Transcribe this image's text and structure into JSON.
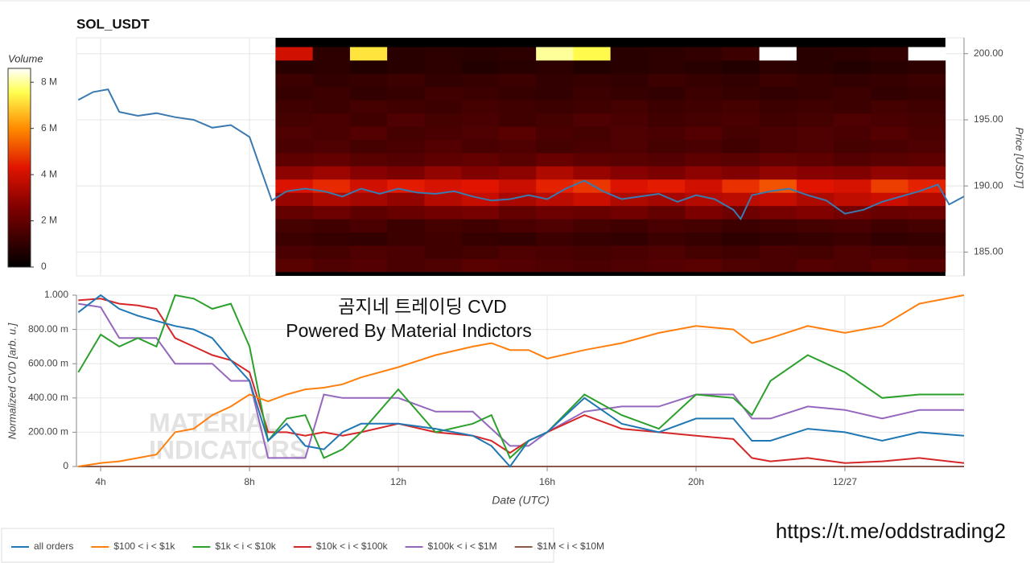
{
  "chart_data": [
    {
      "type": "heatmap",
      "title": "SOL_USDT",
      "ylabel": "Price [USDT]",
      "xlim": [
        3.35,
        27.2
      ],
      "xticks": [
        4,
        8,
        12,
        16,
        20,
        24
      ],
      "ylim": [
        183.2,
        201.2
      ],
      "yticks": [
        {
          "value": 185,
          "label": "185.00"
        },
        {
          "value": 190,
          "label": "190.00"
        },
        {
          "value": 195,
          "label": "195.00"
        },
        {
          "value": 200,
          "label": "200.00"
        }
      ],
      "grid": true,
      "colorbar": {
        "title": "Volume",
        "clim": [
          0,
          8.6
        ],
        "ticks": [
          0,
          {
            "value": 2,
            "label": "2 M"
          },
          {
            "value": 4,
            "label": "4 M"
          },
          {
            "value": 6,
            "label": "6 M"
          },
          {
            "value": 8,
            "label": "8 M"
          }
        ]
      },
      "heatmap": {
        "x_edges": [
          8.7,
          9.7,
          10.7,
          11.7,
          12.7,
          13.7,
          14.7,
          15.7,
          16.7,
          17.7,
          18.7,
          19.7,
          20.7,
          21.7,
          22.7,
          23.7,
          24.7,
          25.7,
          26.7
        ],
        "y_edges": [
          183.5,
          184.5,
          185.5,
          186.5,
          187.5,
          188.5,
          189.5,
          190.5,
          191.5,
          192.5,
          193.5,
          194.5,
          195.5,
          196.5,
          197.5,
          198.5,
          199.5,
          200.5
        ],
        "values": [
          [
            1.8,
            1.6,
            1.7,
            1.5,
            1.6,
            1.8,
            1.7,
            1.6,
            1.5,
            1.6,
            1.7,
            1.8,
            1.6,
            1.5,
            1.7,
            1.6,
            1.8,
            1.7
          ],
          [
            1.5,
            1.4,
            1.6,
            1.5,
            1.3,
            1.4,
            1.6,
            1.5,
            1.4,
            1.5,
            1.6,
            1.4,
            1.3,
            1.5,
            1.4,
            1.6,
            1.5,
            1.4
          ],
          [
            1.2,
            1.1,
            1.0,
            1.2,
            1.3,
            1.1,
            1.0,
            1.2,
            1.1,
            1.0,
            1.2,
            1.1,
            0.9,
            1.0,
            1.1,
            1.2,
            1.0,
            1.1
          ],
          [
            1.4,
            1.3,
            1.5,
            1.2,
            1.4,
            1.3,
            1.5,
            1.6,
            1.4,
            1.3,
            1.5,
            1.4,
            1.2,
            1.3,
            1.4,
            1.5,
            1.3,
            1.4
          ],
          [
            2.0,
            2.2,
            1.9,
            2.1,
            2.3,
            2.4,
            2.0,
            2.2,
            2.1,
            2.3,
            2.0,
            2.5,
            2.2,
            2.4,
            2.6,
            2.3,
            2.1,
            2.2
          ],
          [
            3.0,
            3.4,
            3.2,
            2.9,
            3.5,
            3.8,
            3.3,
            3.6,
            3.9,
            3.4,
            3.2,
            3.5,
            3.6,
            3.8,
            3.4,
            3.7,
            3.9,
            3.5
          ],
          [
            4.2,
            4.6,
            4.0,
            4.4,
            4.1,
            4.3,
            3.9,
            4.5,
            4.8,
            4.2,
            4.4,
            4.0,
            4.7,
            5.2,
            4.3,
            4.1,
            4.9,
            4.5
          ],
          [
            2.8,
            3.1,
            2.7,
            2.5,
            2.9,
            2.6,
            2.8,
            3.4,
            3.0,
            2.7,
            2.5,
            2.8,
            2.6,
            2.9,
            2.7,
            2.6,
            2.9,
            2.8
          ],
          [
            1.9,
            2.0,
            1.8,
            1.7,
            1.9,
            2.0,
            1.8,
            2.1,
            1.9,
            1.8,
            1.7,
            1.9,
            1.8,
            2.0,
            1.9,
            1.7,
            1.8,
            1.9
          ],
          [
            1.5,
            1.6,
            1.4,
            1.5,
            1.7,
            1.5,
            1.6,
            1.4,
            1.5,
            1.6,
            1.4,
            1.5,
            1.3,
            1.5,
            1.6,
            1.4,
            1.5,
            1.6
          ],
          [
            1.6,
            1.5,
            1.7,
            1.4,
            1.5,
            1.6,
            1.8,
            1.5,
            1.4,
            1.6,
            1.5,
            1.7,
            1.4,
            1.5,
            1.6,
            1.5,
            1.7,
            1.5
          ],
          [
            1.4,
            1.5,
            1.3,
            1.6,
            1.4,
            1.5,
            1.3,
            1.4,
            1.6,
            1.5,
            1.3,
            1.4,
            1.5,
            1.3,
            1.4,
            1.6,
            1.5,
            1.4
          ],
          [
            1.3,
            1.2,
            1.4,
            1.3,
            1.2,
            1.4,
            1.3,
            1.2,
            1.3,
            1.4,
            1.2,
            1.3,
            1.4,
            1.2,
            1.3,
            1.2,
            1.4,
            1.3
          ],
          [
            1.1,
            1.2,
            1.0,
            1.1,
            1.3,
            1.2,
            1.1,
            1.0,
            1.2,
            1.1,
            1.0,
            1.2,
            1.1,
            1.0,
            1.1,
            1.2,
            1.0,
            1.1
          ],
          [
            1.2,
            1.0,
            1.1,
            1.2,
            1.0,
            1.1,
            1.2,
            1.0,
            1.1,
            1.0,
            1.2,
            1.1,
            1.0,
            1.2,
            1.1,
            1.0,
            1.1,
            1.2
          ],
          [
            0.8,
            0.9,
            0.7,
            0.8,
            0.9,
            0.7,
            0.8,
            0.9,
            0.7,
            0.8,
            0.9,
            0.8,
            0.7,
            0.9,
            0.8,
            0.7,
            0.8,
            0.9
          ],
          [
            4.0,
            0.9,
            7.2,
            0.8,
            0.9,
            0.8,
            0.9,
            8.0,
            7.5,
            0.8,
            0.9,
            1.0,
            1.2,
            8.9,
            0.8,
            0.9,
            1.0,
            8.8
          ]
        ]
      },
      "price": {
        "color": "#3a7ab0",
        "x": [
          3.4,
          3.8,
          4.2,
          4.5,
          5.0,
          5.5,
          6.0,
          6.5,
          7.0,
          7.5,
          8.0,
          8.3,
          8.6,
          9.0,
          9.5,
          10,
          10.5,
          11,
          11.5,
          12,
          12.5,
          13,
          13.5,
          14,
          14.5,
          15,
          15.5,
          16,
          16.5,
          17,
          17.5,
          18,
          18.5,
          19,
          19.5,
          20,
          20.5,
          21,
          21.2,
          21.5,
          22,
          22.5,
          23,
          23.5,
          24,
          24.5,
          25,
          25.5,
          26,
          26.5,
          26.8,
          27.2
        ],
        "values": [
          196.5,
          197.1,
          197.3,
          195.6,
          195.3,
          195.5,
          195.2,
          195.0,
          194.4,
          194.6,
          193.7,
          191.3,
          188.9,
          189.6,
          189.8,
          189.6,
          189.2,
          189.8,
          189.4,
          189.8,
          189.5,
          189.4,
          189.6,
          189.2,
          188.9,
          189.0,
          189.3,
          189.0,
          189.8,
          190.4,
          189.6,
          189.0,
          189.2,
          189.4,
          188.8,
          189.3,
          189.0,
          188.2,
          187.5,
          189.3,
          189.6,
          189.8,
          189.3,
          188.9,
          187.9,
          188.2,
          188.8,
          189.2,
          189.6,
          190.1,
          188.6,
          189.2
        ]
      }
    },
    {
      "type": "line",
      "xlabel": "Date (UTC)",
      "ylabel": "Normalized CVD [arb. u.]",
      "annotations": [
        "곰지네 트레이딩 CVD",
        "Powered By Material Indictors"
      ],
      "watermark": [
        "MATERIAL",
        "INDICATORS"
      ],
      "xlim": [
        3.35,
        27.2
      ],
      "xticks": [
        {
          "value": 4,
          "label": "4h"
        },
        {
          "value": 8,
          "label": "8h"
        },
        {
          "value": 12,
          "label": "12h"
        },
        {
          "value": 16,
          "label": "16h"
        },
        {
          "value": 20,
          "label": "20h"
        },
        {
          "value": 24,
          "label": "12/27"
        }
      ],
      "ylim": [
        0,
        1
      ],
      "yticks": [
        0,
        {
          "value": 0.2,
          "label": "200.00 m"
        },
        {
          "value": 0.4,
          "label": "400.00 m"
        },
        {
          "value": 0.6,
          "label": "600.00 m"
        },
        {
          "value": 0.8,
          "label": "800.00 m"
        },
        {
          "value": 1,
          "label": "1.000"
        }
      ],
      "grid": true,
      "legend": "bottom-left",
      "x": [
        3.4,
        4,
        4.5,
        5,
        5.5,
        6,
        6.5,
        7,
        7.5,
        8,
        8.5,
        9,
        9.5,
        10,
        10.5,
        11,
        12,
        13,
        14,
        14.5,
        15,
        15.5,
        16,
        17,
        18,
        19,
        20,
        21,
        21.5,
        22,
        23,
        24,
        25,
        26,
        27.2
      ],
      "series": [
        {
          "name": "all orders",
          "color": "#1f77b4",
          "values": [
            0.9,
            1.0,
            0.92,
            0.88,
            0.85,
            0.82,
            0.8,
            0.75,
            0.62,
            0.5,
            0.15,
            0.25,
            0.12,
            0.1,
            0.2,
            0.25,
            0.25,
            0.22,
            0.18,
            0.12,
            0.0,
            0.15,
            0.2,
            0.4,
            0.25,
            0.2,
            0.28,
            0.28,
            0.15,
            0.15,
            0.22,
            0.2,
            0.15,
            0.2,
            0.18
          ]
        },
        {
          "name": "$100 < i < $1k",
          "color": "#ff7f0e",
          "values": [
            0.0,
            0.02,
            0.03,
            0.05,
            0.07,
            0.2,
            0.22,
            0.3,
            0.35,
            0.42,
            0.38,
            0.42,
            0.45,
            0.46,
            0.48,
            0.52,
            0.58,
            0.65,
            0.7,
            0.72,
            0.68,
            0.68,
            0.63,
            0.68,
            0.72,
            0.78,
            0.82,
            0.8,
            0.72,
            0.75,
            0.82,
            0.78,
            0.82,
            0.95,
            1.0
          ]
        },
        {
          "name": "$1k < i < $10k",
          "color": "#2ca02c",
          "values": [
            0.55,
            0.77,
            0.7,
            0.75,
            0.7,
            1.0,
            0.98,
            0.92,
            0.95,
            0.7,
            0.15,
            0.28,
            0.3,
            0.05,
            0.1,
            0.2,
            0.45,
            0.2,
            0.25,
            0.3,
            0.05,
            0.15,
            0.2,
            0.42,
            0.3,
            0.22,
            0.42,
            0.4,
            0.3,
            0.5,
            0.65,
            0.55,
            0.4,
            0.42,
            0.42
          ]
        },
        {
          "name": "$10k < i < $100k",
          "color": "#d62728",
          "values": [
            0.97,
            0.98,
            0.95,
            0.94,
            0.92,
            0.75,
            0.7,
            0.65,
            0.62,
            0.55,
            0.2,
            0.2,
            0.18,
            0.2,
            0.18,
            0.2,
            0.25,
            0.2,
            0.18,
            0.15,
            0.08,
            0.15,
            0.2,
            0.3,
            0.22,
            0.2,
            0.18,
            0.16,
            0.05,
            0.03,
            0.05,
            0.02,
            0.03,
            0.05,
            0.02
          ]
        },
        {
          "name": "$100k < i < $1M",
          "color": "#9467bd",
          "values": [
            0.95,
            0.93,
            0.75,
            0.75,
            0.75,
            0.6,
            0.6,
            0.6,
            0.5,
            0.5,
            0.05,
            0.05,
            0.05,
            0.42,
            0.4,
            0.4,
            0.4,
            0.32,
            0.32,
            0.22,
            0.12,
            0.12,
            0.2,
            0.32,
            0.35,
            0.35,
            0.42,
            0.42,
            0.28,
            0.28,
            0.35,
            0.33,
            0.28,
            0.33,
            0.33
          ]
        },
        {
          "name": "$1M < i < $10M",
          "color": "#8c564b",
          "values": [
            0,
            0,
            0,
            0,
            0,
            0,
            0,
            0,
            0,
            0,
            0,
            0,
            0,
            0,
            0,
            0,
            0,
            0,
            0,
            0,
            0,
            0,
            0,
            0,
            0,
            0,
            0,
            0,
            0,
            0,
            0,
            0,
            0,
            0,
            0
          ]
        }
      ]
    }
  ],
  "footer": {
    "url": "https://t.me/oddstrading2"
  }
}
